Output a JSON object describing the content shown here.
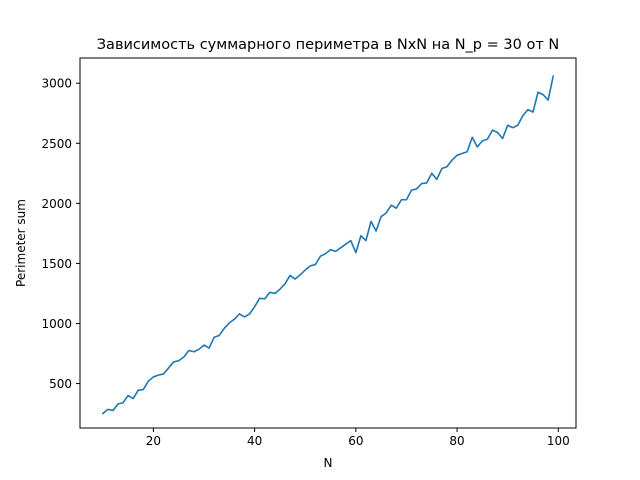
{
  "chart_data": {
    "type": "line",
    "title": "Зависимость суммарного периметра в NxN на N_p = 30 от N",
    "xlabel": "N",
    "ylabel": "Perimeter sum",
    "xlim": [
      5.5,
      103.5
    ],
    "ylim": [
      130,
      3210
    ],
    "xticks": [
      20,
      40,
      60,
      80,
      100
    ],
    "yticks": [
      500,
      1000,
      1500,
      2000,
      2500,
      3000
    ],
    "grid": false,
    "line_color": "#1f77b4",
    "series": [
      {
        "x": [
          10,
          11,
          12,
          13,
          14,
          15,
          16,
          17,
          18,
          19,
          20,
          21,
          22,
          23,
          24,
          25,
          26,
          27,
          28,
          29,
          30,
          31,
          32,
          33,
          34,
          35,
          36,
          37,
          38,
          39,
          40,
          41,
          42,
          43,
          44,
          45,
          46,
          47,
          48,
          49,
          50,
          51,
          52,
          53,
          54,
          55,
          56,
          57,
          58,
          59,
          60,
          61,
          62,
          63,
          64,
          65,
          66,
          67,
          68,
          69,
          70,
          71,
          72,
          73,
          74,
          75,
          76,
          77,
          78,
          79,
          80,
          81,
          82,
          83,
          84,
          85,
          86,
          87,
          88,
          89,
          90,
          91,
          92,
          93,
          94,
          95,
          96,
          97,
          98,
          99
        ],
        "values": [
          250,
          285,
          275,
          330,
          340,
          400,
          375,
          445,
          450,
          520,
          555,
          570,
          580,
          630,
          680,
          690,
          720,
          775,
          765,
          785,
          820,
          795,
          885,
          900,
          960,
          1005,
          1035,
          1080,
          1055,
          1080,
          1140,
          1210,
          1205,
          1260,
          1250,
          1285,
          1330,
          1400,
          1370,
          1405,
          1445,
          1480,
          1490,
          1560,
          1580,
          1615,
          1600,
          1630,
          1660,
          1690,
          1590,
          1730,
          1690,
          1850,
          1770,
          1890,
          1920,
          1985,
          1960,
          2030,
          2030,
          2110,
          2120,
          2165,
          2170,
          2250,
          2200,
          2290,
          2305,
          2360,
          2400,
          2415,
          2430,
          2550,
          2470,
          2520,
          2535,
          2610,
          2590,
          2540,
          2650,
          2630,
          2650,
          2730,
          2780,
          2760,
          2925,
          2905,
          2860,
          3060
        ]
      }
    ]
  }
}
